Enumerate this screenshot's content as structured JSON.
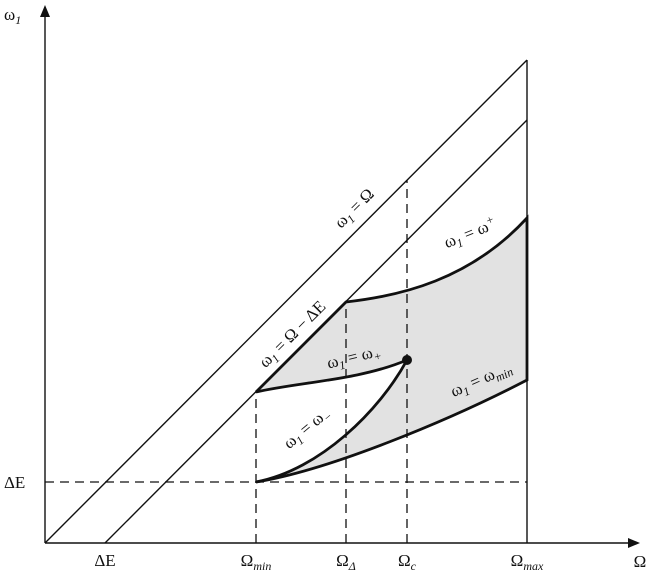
{
  "axes": {
    "y_label": [
      {
        "t": "ω"
      },
      {
        "sub": "1"
      }
    ],
    "x_label": [
      {
        "t": "Ω"
      }
    ],
    "y_ticks": [
      [
        {
          "t": "ΔE"
        }
      ]
    ],
    "x_ticks": [
      [
        {
          "t": "ΔE"
        }
      ],
      [
        {
          "t": "Ω"
        },
        {
          "sub": "min"
        }
      ],
      [
        {
          "t": "Ω"
        },
        {
          "sub": "Δ"
        }
      ],
      [
        {
          "t": "Ω"
        },
        {
          "sub": "c"
        }
      ],
      [
        {
          "t": "Ω"
        },
        {
          "sub": "max"
        }
      ]
    ]
  },
  "curves": [
    [
      {
        "t": "ω"
      },
      {
        "sub": "1"
      },
      {
        "t": " = Ω"
      }
    ],
    [
      {
        "t": "ω"
      },
      {
        "sub": "1"
      },
      {
        "t": " = Ω − ΔE"
      }
    ],
    [
      {
        "t": "ω"
      },
      {
        "sub": "1"
      },
      {
        "t": " = ω"
      },
      {
        "sup": "+"
      }
    ],
    [
      {
        "t": "ω"
      },
      {
        "sub": "1"
      },
      {
        "t": " = ω"
      },
      {
        "sub": "+"
      }
    ],
    [
      {
        "t": "ω"
      },
      {
        "sub": "1"
      },
      {
        "t": " = ω"
      },
      {
        "sub": "−"
      }
    ],
    [
      {
        "t": "ω"
      },
      {
        "sub": "1"
      },
      {
        "t": " = ω"
      },
      {
        "sub": "min"
      }
    ]
  ]
}
